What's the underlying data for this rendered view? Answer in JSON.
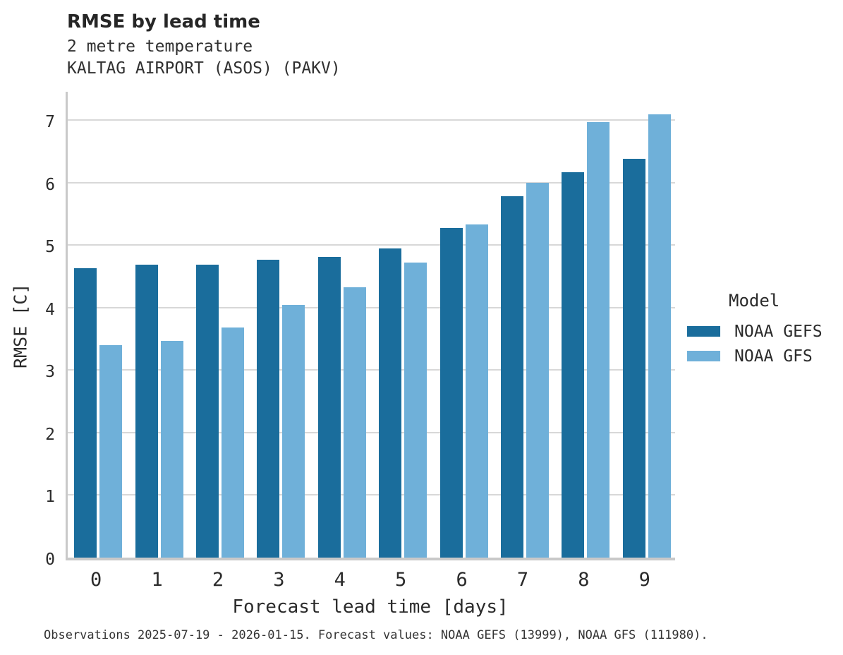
{
  "header": {
    "title": "RMSE by lead time",
    "subtitle_variable": "2 metre temperature",
    "subtitle_station": "KALTAG AIRPORT (ASOS) (PAKV)"
  },
  "chart_data": {
    "type": "bar",
    "title": "RMSE by lead time",
    "subtitle": "2 metre temperature — KALTAG AIRPORT (ASOS) (PAKV)",
    "categories": [
      "0",
      "1",
      "2",
      "3",
      "4",
      "5",
      "6",
      "7",
      "8",
      "9"
    ],
    "series": [
      {
        "name": "NOAA GEFS",
        "color": "#1a6d9c",
        "values": [
          4.63,
          4.69,
          4.69,
          4.77,
          4.81,
          4.95,
          5.27,
          5.78,
          6.17,
          6.38
        ]
      },
      {
        "name": "NOAA GFS",
        "color": "#6fb0d9",
        "values": [
          3.4,
          3.47,
          3.68,
          4.04,
          4.33,
          4.72,
          5.33,
          6.0,
          6.97,
          7.09
        ]
      }
    ],
    "xlabel": "Forecast lead time [days]",
    "ylabel": "RMSE [C]",
    "ylim": [
      0,
      7.5
    ],
    "yticks": [
      0,
      1,
      2,
      3,
      4,
      5,
      6,
      7
    ],
    "grid": true,
    "legend_position": "center-right"
  },
  "legend": {
    "title": "Model",
    "items": [
      {
        "label": "NOAA GEFS",
        "color": "#1a6d9c"
      },
      {
        "label": "NOAA GFS",
        "color": "#6fb0d9"
      }
    ]
  },
  "footer": {
    "note": "Observations 2025-07-19 - 2026-01-15. Forecast values: NOAA GEFS (13999), NOAA GFS (111980)."
  }
}
